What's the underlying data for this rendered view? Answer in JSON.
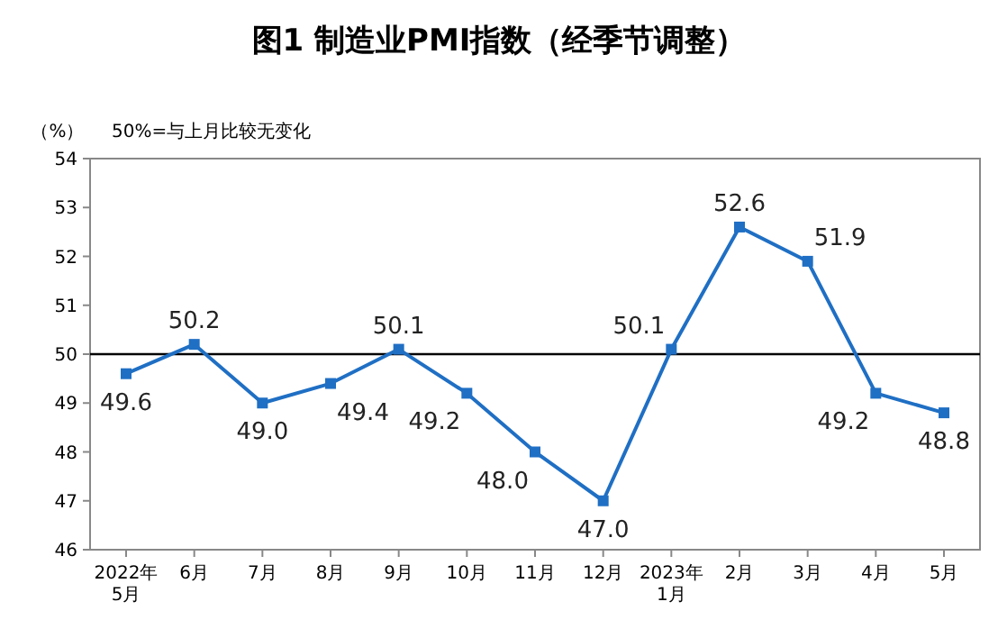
{
  "chart_data": {
    "type": "line",
    "title": "图1 制造业PMI指数（经季节调整）",
    "ylabel": "（%）",
    "annotations": [
      "50%=与上月比较无变化"
    ],
    "categories": [
      "2022年\n5月",
      "6月",
      "7月",
      "8月",
      "9月",
      "10月",
      "11月",
      "12月",
      "2023年\n1月",
      "2月",
      "3月",
      "4月",
      "5月"
    ],
    "series": [
      {
        "color": "#1f6fc4",
        "values": [
          49.6,
          50.2,
          49.0,
          49.4,
          50.1,
          49.2,
          48.0,
          47.0,
          50.1,
          52.6,
          51.9,
          49.2,
          48.8
        ],
        "value_labels": [
          "49.6",
          "50.2",
          "49.0",
          "49.4",
          "50.1",
          "49.2",
          "48.0",
          "47.0",
          "50.1",
          "52.6",
          "51.9",
          "49.2",
          "48.8"
        ]
      }
    ],
    "ylim": [
      46,
      54
    ],
    "yticks": [
      46,
      47,
      48,
      49,
      50,
      51,
      52,
      53,
      54
    ],
    "ref_lines": [
      {
        "axis": "y",
        "value": 50,
        "color": "#000000"
      }
    ],
    "marker": "square",
    "line_style": "solid",
    "grid": false
  }
}
